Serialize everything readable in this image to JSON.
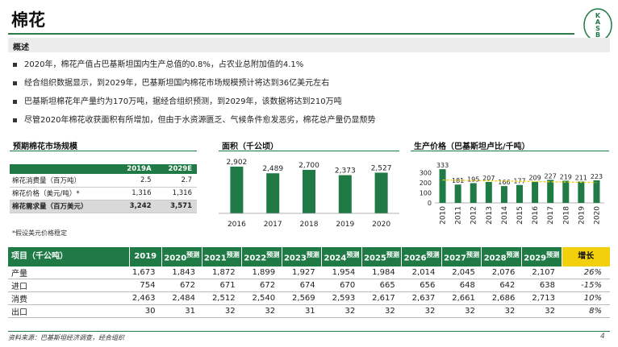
{
  "header": {
    "title": "棉花",
    "logo_text": "KASB"
  },
  "overview": {
    "label": "概述",
    "bullets": [
      "2020年，棉花产值占巴基斯坦国内生产总值的0.8%，占农业总附加值的4.1%",
      "经合组织数据显示，到2029年，巴基斯坦国内棉花市场规模预计将达到36亿美元左右",
      "巴基斯坦棉花年产量约为170万吨，据经合组织预测，到2029年，该数据将达到210万吨",
      "尽管2020年棉花收获面积有所增加，但由于水资源匮乏、气候条件愈发恶劣，棉花总产量仍显颓势"
    ]
  },
  "market": {
    "heading": "预期棉花市场规模",
    "columns": [
      "",
      "2019A",
      "2029E"
    ],
    "rows": [
      [
        "棉花消费量（百万吨）",
        "2.5",
        "2.7"
      ],
      [
        "棉花价格（美元/吨）*",
        "1,316",
        "1,316"
      ],
      [
        "棉花需求量（百万美元）",
        "3,242",
        "3,571"
      ]
    ],
    "note": "*假设美元价格稳定"
  },
  "area_heading": "面积（千公顷）",
  "price_heading": "生产价格（巴基斯坦卢比/千吨）",
  "chart_data": [
    {
      "type": "bar",
      "categories": [
        "2016",
        "2017",
        "2018",
        "2019",
        "2020"
      ],
      "values": [
        2902,
        2489,
        2700,
        2373,
        2527
      ],
      "value_labels": [
        "2,902",
        "2,489",
        "2,700",
        "2,373",
        "2,527"
      ],
      "color": "#1f7a46"
    },
    {
      "type": "bar",
      "categories": [
        "2010",
        "2011",
        "2012",
        "2013",
        "2014",
        "2015",
        "2016",
        "2017",
        "2018",
        "2019",
        "2020"
      ],
      "values": [
        333,
        181,
        195,
        207,
        166,
        177,
        209,
        227,
        219,
        211,
        223
      ],
      "yticks": [
        0,
        50,
        100,
        150,
        200,
        250,
        300,
        350
      ],
      "ylim": [
        0,
        350
      ],
      "trendline": "dashed",
      "color": "#1f7a46",
      "trend_color": "#f2d00c"
    }
  ],
  "production": {
    "header_label": "项目（千公吨）",
    "years": [
      {
        "y": "2019",
        "sub": ""
      },
      {
        "y": "2020",
        "sub": "预测"
      },
      {
        "y": "2021",
        "sub": "预测"
      },
      {
        "y": "2022",
        "sub": "预测"
      },
      {
        "y": "2023",
        "sub": "预测"
      },
      {
        "y": "2024",
        "sub": "预测"
      },
      {
        "y": "2025",
        "sub": "预测"
      },
      {
        "y": "2026",
        "sub": "预测"
      },
      {
        "y": "2027",
        "sub": "预测"
      },
      {
        "y": "2028",
        "sub": "预测"
      },
      {
        "y": "2029",
        "sub": "预测"
      }
    ],
    "growth_label": "增长",
    "rows": [
      {
        "label": "产量",
        "values": [
          "1,673",
          "1,843",
          "1,872",
          "1,899",
          "1,927",
          "1,954",
          "1,984",
          "2,014",
          "2,045",
          "2,076",
          "2,107"
        ],
        "growth": "26%"
      },
      {
        "label": "进口",
        "values": [
          "754",
          "672",
          "671",
          "672",
          "674",
          "670",
          "665",
          "656",
          "648",
          "642",
          "638"
        ],
        "growth": "-15%"
      },
      {
        "label": "消费",
        "values": [
          "2,463",
          "2,484",
          "2,512",
          "2,540",
          "2,569",
          "2,593",
          "2,617",
          "2,637",
          "2,661",
          "2,686",
          "2,713"
        ],
        "growth": "10%"
      },
      {
        "label": "出口",
        "values": [
          "30",
          "31",
          "32",
          "32",
          "31",
          "32",
          "32",
          "32",
          "32",
          "32",
          "32"
        ],
        "growth": "8%"
      }
    ]
  },
  "footer": {
    "source": "资料来源：巴基斯坦经济调查，经合组织",
    "page": "4"
  }
}
